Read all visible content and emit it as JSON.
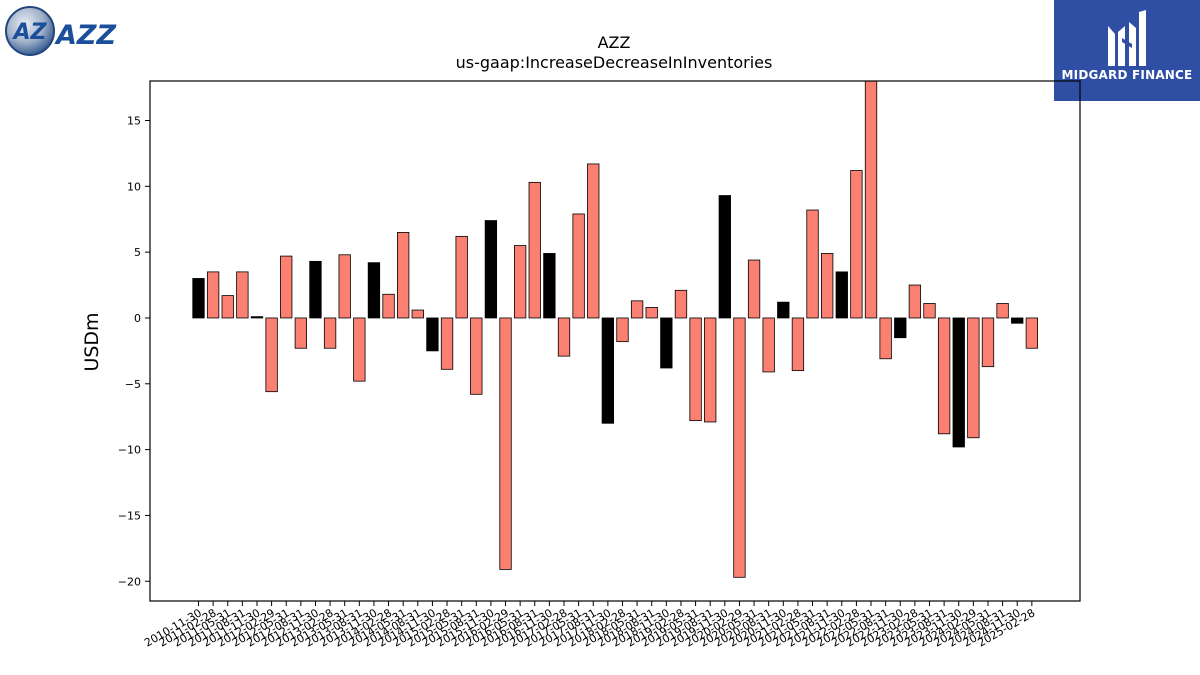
{
  "logos": {
    "left_wordmark": "AZZ",
    "left_badge": "AZ",
    "right_brand": "MIDGARD FINANCE"
  },
  "colors": {
    "positive_bar": "#fa8072",
    "negative_bar": "#000000",
    "midgard_bg": "#2e4fa3",
    "azz_blue": "#1b4f9c"
  },
  "chart_data": {
    "type": "bar",
    "title": "AZZ",
    "subtitle": "us-gaap:IncreaseDecreaseInInventories",
    "ylabel": "USDm",
    "xlabel": "",
    "ylim": [
      -21.5,
      18
    ],
    "yticks": [
      -20,
      -15,
      -10,
      -5,
      0,
      5,
      10,
      15
    ],
    "grid": false,
    "legend": "none",
    "categories": [
      "2010-11-30",
      "2011-02-28",
      "2011-05-31",
      "2011-08-31",
      "2011-11-30",
      "2012-02-29",
      "2012-05-31",
      "2012-08-31",
      "2012-11-30",
      "2013-02-28",
      "2013-05-31",
      "2013-08-31",
      "2013-11-30",
      "2014-02-28",
      "2014-05-31",
      "2014-08-31",
      "2014-11-30",
      "2015-02-28",
      "2015-05-31",
      "2015-08-31",
      "2015-11-30",
      "2016-02-29",
      "2016-05-31",
      "2016-08-31",
      "2016-11-30",
      "2017-02-28",
      "2017-05-31",
      "2017-08-31",
      "2017-11-30",
      "2018-02-28",
      "2018-05-31",
      "2018-08-31",
      "2018-11-30",
      "2019-02-28",
      "2019-05-31",
      "2019-08-31",
      "2019-11-30",
      "2020-02-29",
      "2020-05-31",
      "2020-08-31",
      "2020-11-30",
      "2021-02-28",
      "2021-05-31",
      "2021-08-31",
      "2021-11-30",
      "2022-02-28",
      "2022-05-31",
      "2022-08-31",
      "2022-11-30",
      "2023-02-28",
      "2023-05-31",
      "2023-08-31",
      "2023-11-30",
      "2024-02-29",
      "2024-05-31",
      "2024-08-31",
      "2024-11-30",
      "2025-02-28"
    ],
    "values": [
      3.0,
      3.5,
      1.7,
      3.5,
      0.1,
      -5.6,
      4.7,
      -2.3,
      4.3,
      -2.3,
      4.8,
      -4.8,
      4.2,
      1.8,
      6.5,
      0.6,
      -2.5,
      -3.9,
      6.2,
      -5.8,
      7.4,
      -19.1,
      5.5,
      10.3,
      4.9,
      -2.9,
      7.9,
      11.7,
      -8.0,
      -1.8,
      1.3,
      0.8,
      -3.8,
      2.1,
      -7.8,
      -7.9,
      9.3,
      -19.7,
      4.4,
      -4.1,
      1.2,
      -4.0,
      8.2,
      4.9,
      3.5,
      11.2,
      18.0,
      -3.1,
      -1.5,
      2.5,
      1.1,
      -8.8,
      -9.8,
      -9.1,
      -3.7,
      1.1,
      -0.4,
      -2.3
    ],
    "bar_colors": [
      "#000000",
      "#fa8072",
      "#fa8072",
      "#fa8072",
      "#000000",
      "#fa8072",
      "#fa8072",
      "#fa8072",
      "#000000",
      "#fa8072",
      "#fa8072",
      "#fa8072",
      "#000000",
      "#fa8072",
      "#fa8072",
      "#fa8072",
      "#000000",
      "#fa8072",
      "#fa8072",
      "#fa8072",
      "#000000",
      "#fa8072",
      "#fa8072",
      "#fa8072",
      "#000000",
      "#fa8072",
      "#fa8072",
      "#fa8072",
      "#000000",
      "#fa8072",
      "#fa8072",
      "#fa8072",
      "#000000",
      "#fa8072",
      "#fa8072",
      "#fa8072",
      "#000000",
      "#fa8072",
      "#fa8072",
      "#fa8072",
      "#000000",
      "#fa8072",
      "#fa8072",
      "#fa8072",
      "#000000",
      "#fa8072",
      "#fa8072",
      "#fa8072",
      "#000000",
      "#fa8072",
      "#fa8072",
      "#fa8072",
      "#000000",
      "#fa8072",
      "#fa8072",
      "#fa8072",
      "#000000",
      "#fa8072"
    ]
  }
}
